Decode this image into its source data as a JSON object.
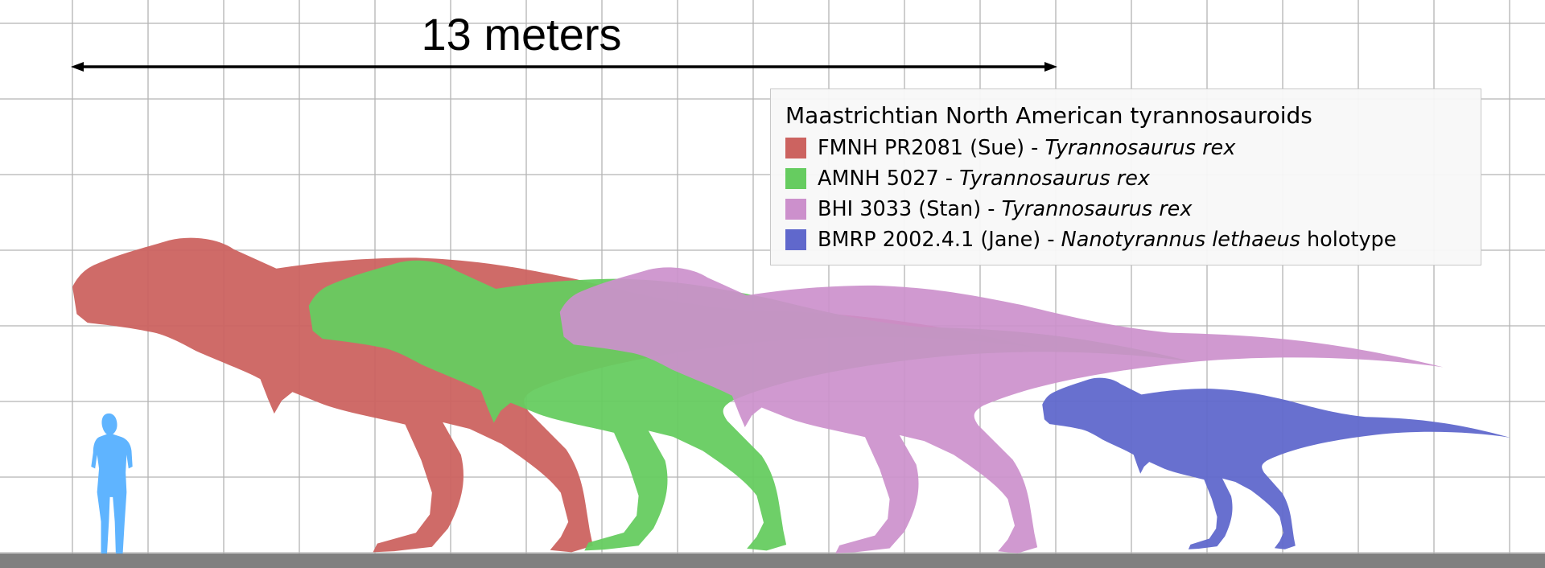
{
  "scale_bar": {
    "label": "13 meters",
    "length_m": 13
  },
  "legend": {
    "title": "Maastrichtian North American tyrannosauroids",
    "items": [
      {
        "specimen": "FMNH PR2081 (Sue) - ",
        "species": "Tyrannosaurus rex",
        "suffix": "",
        "color": "#cc6360"
      },
      {
        "specimen": "AMNH 5027 - ",
        "species": "Tyrannosaurus rex",
        "suffix": "",
        "color": "#66cc60"
      },
      {
        "specimen": "BHI 3033 (Stan) - ",
        "species": "Tyrannosaurus rex",
        "suffix": "",
        "color": "#cc90cc"
      },
      {
        "specimen": "BMRP 2002.4.1 (Jane) - ",
        "species": "Nanotyrannus lethaeus",
        "suffix": " holotype",
        "color": "#6068cc"
      }
    ]
  },
  "colors": {
    "human": "#5fb4ff",
    "ground": "#808080",
    "grid": "#b4b4b4"
  }
}
